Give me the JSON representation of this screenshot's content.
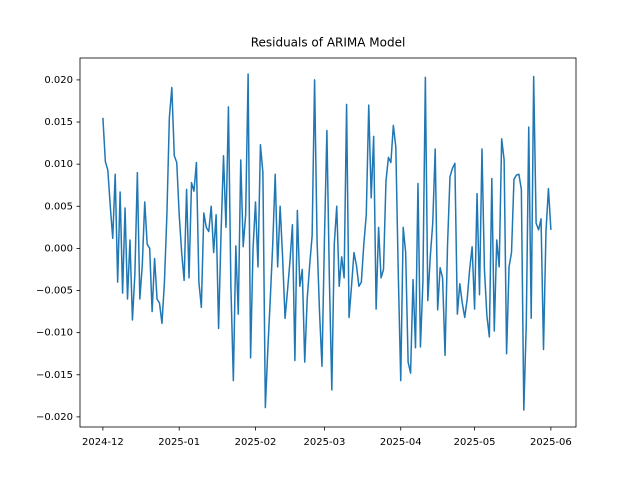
{
  "chart_data": {
    "type": "line",
    "title": "Residuals of ARIMA Model",
    "series": [
      {
        "color": "#1f77b4",
        "values": [
          0.0155,
          0.0103,
          0.0093,
          0.005,
          0.0012,
          0.0088,
          -0.004,
          0.0067,
          -0.0053,
          0.0048,
          -0.006,
          0.001,
          -0.0085,
          -0.003,
          0.009,
          -0.006,
          -0.002,
          0.0055,
          0.0005,
          0.0,
          -0.0075,
          -0.0012,
          -0.006,
          -0.0065,
          -0.0089,
          -0.004,
          0.004,
          0.0155,
          0.0191,
          0.011,
          0.0102,
          0.004,
          -0.0005,
          -0.0038,
          0.007,
          -0.0035,
          0.0078,
          0.0068,
          0.0102,
          -0.004,
          -0.007,
          0.0042,
          0.0025,
          0.002,
          0.005,
          -0.0005,
          0.004,
          -0.0095,
          0.0018,
          0.011,
          0.0025,
          0.0168,
          -0.0045,
          -0.0157,
          0.0003,
          -0.0078,
          0.0105,
          0.0002,
          0.004,
          0.0207,
          -0.013,
          0.0,
          0.0055,
          -0.0022,
          0.0123,
          0.009,
          -0.0189,
          -0.012,
          -0.006,
          0.0005,
          0.0088,
          -0.0022,
          0.005,
          -0.001,
          -0.0083,
          -0.005,
          -0.0015,
          0.0028,
          -0.0133,
          0.0045,
          -0.0045,
          -0.0025,
          -0.0135,
          -0.006,
          -0.002,
          0.0015,
          0.02,
          0.001,
          -0.0075,
          -0.014,
          0.001,
          0.014,
          -0.0035,
          -0.0168,
          0.0005,
          0.005,
          -0.0045,
          -0.001,
          -0.0035,
          0.0171,
          -0.0082,
          -0.0045,
          -0.0005,
          -0.002,
          -0.0045,
          -0.004,
          0.0005,
          0.004,
          0.017,
          0.006,
          0.0133,
          -0.0072,
          0.0025,
          -0.0035,
          -0.0025,
          0.008,
          0.0108,
          0.0102,
          0.0146,
          0.012,
          -0.003,
          -0.0157,
          0.0025,
          -0.0005,
          -0.0135,
          -0.0148,
          -0.0037,
          -0.0118,
          0.0077,
          -0.0117,
          -0.004,
          0.0203,
          -0.0062,
          -0.001,
          0.003,
          0.0118,
          -0.0073,
          -0.0023,
          -0.0035,
          -0.0127,
          0.0003,
          0.0085,
          0.0095,
          0.0101,
          -0.0078,
          -0.0042,
          -0.0065,
          -0.0082,
          -0.006,
          -0.0025,
          0.0002,
          -0.0072,
          0.0065,
          -0.0055,
          0.0118,
          -0.0025,
          -0.008,
          -0.0105,
          0.0083,
          -0.0098,
          0.001,
          -0.0022,
          0.013,
          0.0105,
          -0.0125,
          -0.0022,
          -0.0005,
          0.0082,
          0.0087,
          0.0088,
          0.007,
          -0.0192,
          -0.009,
          0.0144,
          -0.0083,
          0.0204,
          0.003,
          0.0022,
          0.0035,
          -0.012,
          0.002,
          0.0071,
          0.0022
        ]
      }
    ],
    "xlim": [
      -9.3,
      192.2
    ],
    "xticks": [
      {
        "value": 0,
        "label": "2024-12"
      },
      {
        "value": 31,
        "label": "2025-01"
      },
      {
        "value": 62,
        "label": "2025-02"
      },
      {
        "value": 90,
        "label": "2025-03"
      },
      {
        "value": 121,
        "label": "2025-04"
      },
      {
        "value": 151,
        "label": "2025-05"
      },
      {
        "value": 182,
        "label": "2025-06"
      }
    ],
    "ylim": [
      -0.0212,
      0.0226
    ],
    "yticks": [
      {
        "value": -0.02,
        "label": "−0.020"
      },
      {
        "value": -0.015,
        "label": "−0.015"
      },
      {
        "value": -0.01,
        "label": "−0.010"
      },
      {
        "value": -0.005,
        "label": "−0.005"
      },
      {
        "value": 0,
        "label": "0.000"
      },
      {
        "value": 0.005,
        "label": "0.005"
      },
      {
        "value": 0.01,
        "label": "0.010"
      },
      {
        "value": 0.015,
        "label": "0.015"
      },
      {
        "value": 0.02,
        "label": "0.020"
      }
    ]
  }
}
